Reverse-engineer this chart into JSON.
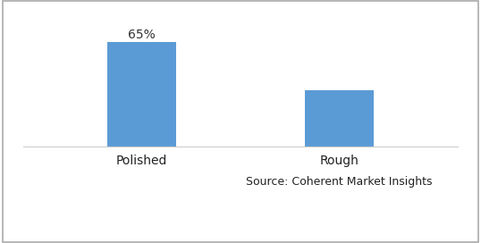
{
  "categories": [
    "Polished",
    "Rough"
  ],
  "values": [
    65,
    35
  ],
  "bar_color": "#5B9BD5",
  "bar_label": "65%",
  "bar_label_index": 0,
  "source_text": "Source: Coherent Market Insights",
  "background_color": "#ffffff",
  "bar_width": 0.35,
  "label_fontsize": 10,
  "tick_fontsize": 10,
  "source_fontsize": 9,
  "ylim": [
    0,
    80
  ],
  "figsize": [
    5.38,
    2.72
  ],
  "dpi": 100,
  "border_color": "#aaaaaa"
}
